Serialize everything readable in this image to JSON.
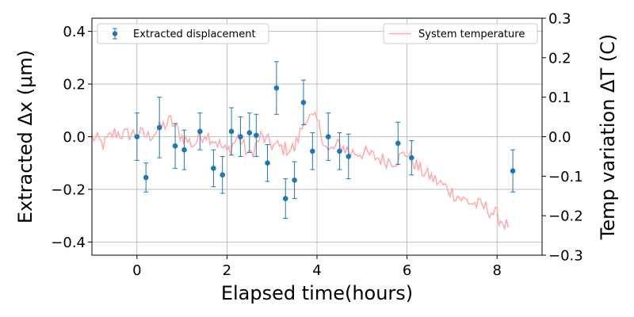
{
  "chart_data": {
    "type": "scatter",
    "xlabel": "Elapsed time(hours)",
    "ylabel": "Extracted Δx (μm)",
    "ylabel_right": "Temp variation ΔT (C)",
    "xlim": [
      -1.0,
      9.0
    ],
    "ylim": [
      -0.45,
      0.45
    ],
    "ylim_right": [
      -0.3,
      0.3
    ],
    "x_ticks": [
      0,
      2,
      4,
      6,
      8
    ],
    "y_ticks": [
      -0.4,
      -0.2,
      0.0,
      0.2,
      0.4
    ],
    "y_ticks_right": [
      -0.3,
      -0.2,
      -0.1,
      0.0,
      0.1,
      0.2,
      0.3
    ],
    "x_tick_labels": [
      "0",
      "2",
      "4",
      "6",
      "8"
    ],
    "y_tick_labels": [
      "−0.4",
      "−0.2",
      "0.0",
      "0.2",
      "0.4"
    ],
    "y_tick_labels_right": [
      "−0.3",
      "−0.2",
      "−0.1",
      "0.0",
      "0.1",
      "0.2",
      "0.3"
    ],
    "grid": true,
    "legends": [
      {
        "label": "Extracted displacement",
        "placement": "top-left"
      },
      {
        "label": "System temperature",
        "placement": "top-right"
      }
    ],
    "series": [
      {
        "name": "Extracted displacement",
        "kind": "errorbar",
        "axis": "left",
        "color": "#1f77b4",
        "x": [
          0.0,
          0.2,
          0.5,
          0.85,
          1.05,
          1.4,
          1.7,
          1.9,
          2.1,
          2.3,
          2.5,
          2.65,
          2.9,
          3.1,
          3.3,
          3.5,
          3.7,
          3.9,
          4.25,
          4.5,
          4.7,
          5.8,
          6.1,
          8.35
        ],
        "y": [
          0.0,
          -0.155,
          0.035,
          -0.035,
          -0.05,
          0.02,
          -0.12,
          -0.145,
          0.02,
          0.0,
          0.015,
          0.005,
          -0.1,
          0.185,
          -0.235,
          -0.165,
          0.13,
          -0.055,
          0.0,
          -0.055,
          -0.075,
          -0.025,
          -0.08,
          -0.13
        ],
        "yerr": [
          0.09,
          0.055,
          0.115,
          0.085,
          0.075,
          0.07,
          0.07,
          0.07,
          0.09,
          0.075,
          0.075,
          0.08,
          0.07,
          0.1,
          0.075,
          0.07,
          0.085,
          0.07,
          0.09,
          0.07,
          0.085,
          0.08,
          0.065,
          0.08
        ]
      },
      {
        "name": "System temperature",
        "kind": "line",
        "axis": "right",
        "color": "#ffaaaa",
        "x": [
          -1.0,
          -0.75,
          -0.5,
          -0.25,
          0.0,
          0.25,
          0.5,
          0.75,
          1.0,
          1.25,
          1.5,
          1.75,
          2.0,
          2.25,
          2.5,
          2.75,
          3.0,
          3.25,
          3.5,
          3.75,
          4.0,
          4.25,
          4.5,
          4.75,
          5.0,
          5.25,
          5.5,
          5.75,
          6.0,
          6.25,
          6.5,
          6.75,
          7.0,
          7.25,
          7.5,
          7.75,
          8.0,
          8.25
        ],
        "y": [
          0.0,
          -0.02,
          0.01,
          0.005,
          0.01,
          0.0,
          0.02,
          0.04,
          0.0,
          -0.02,
          0.01,
          -0.01,
          -0.04,
          0.0,
          -0.05,
          0.0,
          -0.02,
          -0.03,
          -0.03,
          0.05,
          0.04,
          -0.04,
          -0.02,
          -0.04,
          -0.04,
          -0.05,
          -0.06,
          -0.06,
          -0.04,
          -0.08,
          -0.1,
          -0.12,
          -0.14,
          -0.16,
          -0.17,
          -0.18,
          -0.2,
          -0.23
        ]
      }
    ]
  }
}
